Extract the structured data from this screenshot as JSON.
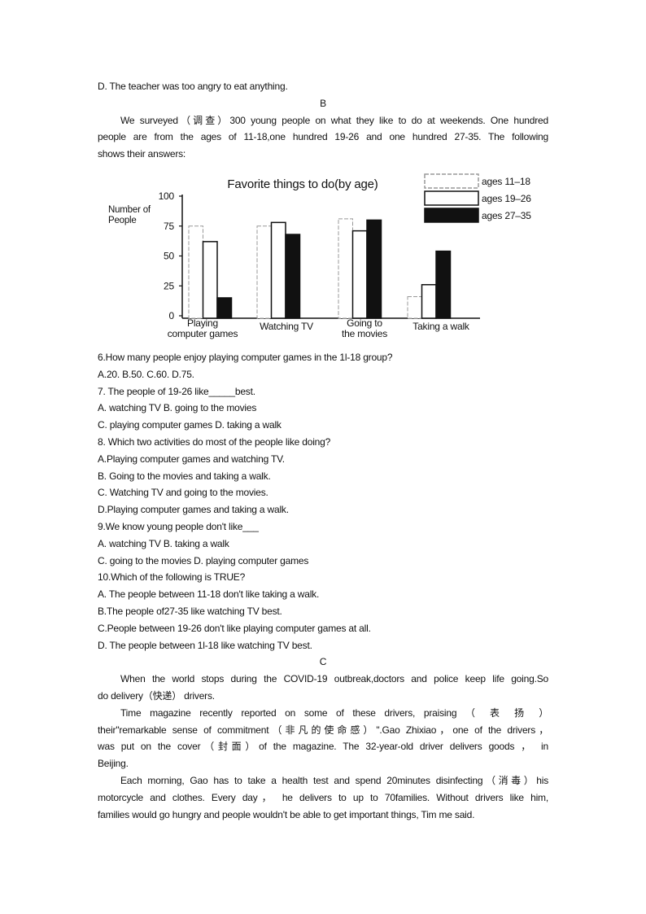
{
  "document": {
    "intro_lines": [
      "D. The teacher was too angry to eat anything."
    ],
    "section_b": "B",
    "passage_b": [
      "We surveyed（调查）300 young people on what they like to do at weekends. One hundred",
      "people are from the ages of 11-18,one hundred 19-26 and one hundred 27-35. The following",
      "shows their answers:"
    ],
    "questions": [
      "6.How many people enjoy playing computer games in the 1l-18 group?",
      "A.20.        B.50.       C.60.          D.75.",
      "7.   The people of 19-26 like_____best.",
      "A. watching TV                          B. going to the movies",
      "C. playing computer games       D. taking a walk",
      "8. Which two activities do most of the people like doing?",
      "A.Playing computer games and watching TV.",
      "B. Going to the movies and taking a walk.",
      "C. Watching TV and going to the movies.",
      "D.Playing computer games and taking a walk.",
      "9.We know young people don't like___",
      "A. watching TV               B. taking a walk",
      "C. going to the movies    D. playing computer games",
      "10.Which of the following is TRUE?",
      "A. The people between 11-18 don't like taking a walk.",
      "B.The people of27-35 like watching TV best.",
      "C.People between 19-26 don't like playing computer games at all.",
      "D. The people between 1l-18 like watching TV best."
    ],
    "section_c": "C",
    "passage_c": [
      {
        "lines": [
          "When the world stops during the COVID-19 outbreak,doctors and police keep life going.So",
          "do delivery（快递）  drivers."
        ]
      },
      {
        "lines": [
          "Time magazine recently reported on some of these drivers, praising （ 表 扬 ）",
          "their\"remarkable sense of commitment（非凡的使命感）\".Gao Zhixiao，one of the drivers，",
          "was put on the cover（封面）of the magazine. The 32-year-old driver delivers goods  ， in",
          "Beijing."
        ]
      },
      {
        "lines": [
          "Each morning, Gao has to take a health test and spend 20minutes disinfecting（消毒）his",
          "motorcycle and clothes. Every day， he delivers to up to 70families. Without drivers like him,",
          "families would go hungry and people wouldn't be able to get important things, Tim me said."
        ]
      }
    ]
  },
  "chart_data": {
    "type": "bar",
    "title": "Favorite things to do(by age)",
    "ylabel": [
      "Number of",
      "People"
    ],
    "xlabel": "",
    "ylim": [
      0,
      100
    ],
    "yticks": [
      "0",
      "25",
      "50",
      "75",
      "100"
    ],
    "categories": [
      [
        "Playing",
        "computer games"
      ],
      [
        "Watching TV"
      ],
      [
        "Going to",
        "the movies"
      ],
      [
        "Taking a walk"
      ]
    ],
    "series": [
      {
        "name": "ages 11–18",
        "values": [
          75,
          75,
          81,
          16
        ],
        "fill": "#ffffff",
        "stroke": "#999999"
      },
      {
        "name": "ages 19–26",
        "values": [
          62,
          78,
          71,
          26
        ],
        "fill": "#ffffff",
        "stroke": "#111111"
      },
      {
        "name": "ages 27–35",
        "values": [
          15,
          68,
          80,
          54
        ],
        "fill": "#111111",
        "stroke": "#111111"
      }
    ],
    "grid": false,
    "legend": "top-right"
  }
}
